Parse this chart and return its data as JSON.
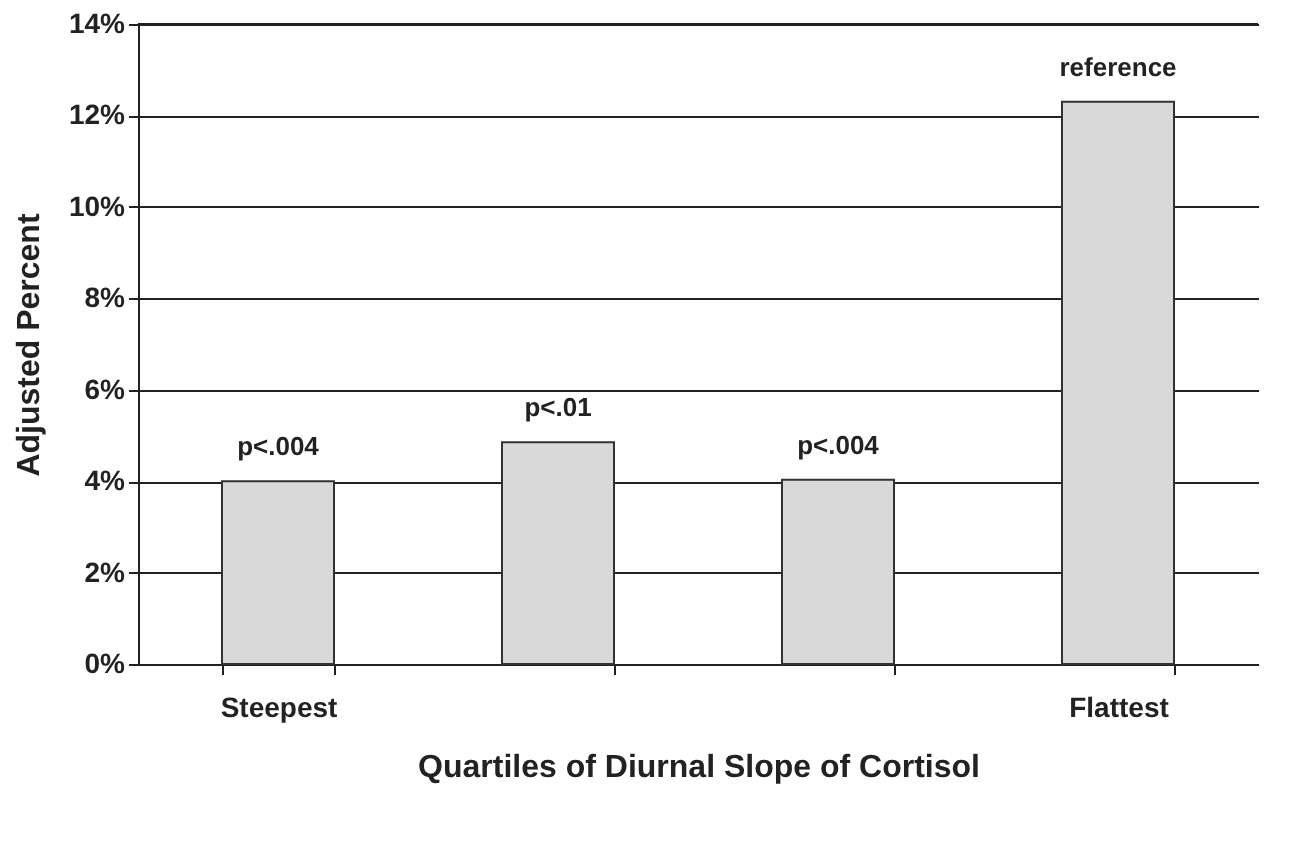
{
  "chart_data": {
    "type": "bar",
    "xlabel": "Quartiles of Diurnal Slope of Cortisol",
    "ylabel": "Adjusted Percent",
    "categories": [
      "Steepest",
      null,
      null,
      "Flattest"
    ],
    "values": [
      4.0,
      4.85,
      4.03,
      12.3
    ],
    "value_labels": [
      "p<.004",
      "p<.01",
      "p<.004",
      "reference"
    ],
    "color": "#d9d9d9",
    "ylim": [
      0,
      14
    ],
    "yticks": [
      {
        "value": 0,
        "label": "0%"
      },
      {
        "value": 2,
        "label": "2%"
      },
      {
        "value": 4,
        "label": "4%"
      },
      {
        "value": 6,
        "label": "6%"
      },
      {
        "value": 8,
        "label": "8%"
      },
      {
        "value": 10,
        "label": "10%"
      },
      {
        "value": 12,
        "label": "12%"
      },
      {
        "value": 14,
        "label": "14%"
      }
    ],
    "grid": "y"
  }
}
